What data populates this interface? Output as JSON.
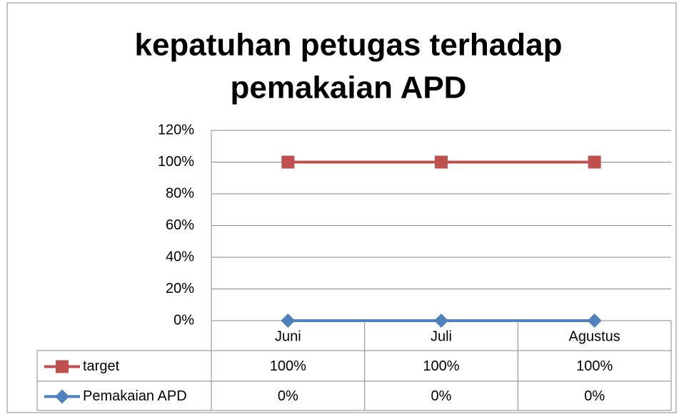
{
  "chart_data": {
    "type": "line",
    "title": [
      "kepatuhan petugas terhadap",
      "pemakaian APD"
    ],
    "categories": [
      "Juni",
      "Juli",
      "Agustus"
    ],
    "series": [
      {
        "name": "target",
        "color": "#c0504d",
        "marker": "square",
        "values": [
          100,
          100,
          100
        ],
        "value_labels": [
          "100%",
          "100%",
          "100%"
        ]
      },
      {
        "name": "Pemakaian APD",
        "color": "#4f81bd",
        "marker": "diamond",
        "values": [
          0,
          0,
          0
        ],
        "value_labels": [
          "0%",
          "0%",
          "0%"
        ]
      }
    ],
    "ylim": [
      0,
      120
    ],
    "yticks": [
      {
        "value": 0,
        "label": "0%"
      },
      {
        "value": 20,
        "label": "20%"
      },
      {
        "value": 40,
        "label": "40%"
      },
      {
        "value": 60,
        "label": "60%"
      },
      {
        "value": 80,
        "label": "80%"
      },
      {
        "value": 100,
        "label": "100%"
      },
      {
        "value": 120,
        "label": "120%"
      }
    ],
    "grid": true,
    "data_table": true
  }
}
